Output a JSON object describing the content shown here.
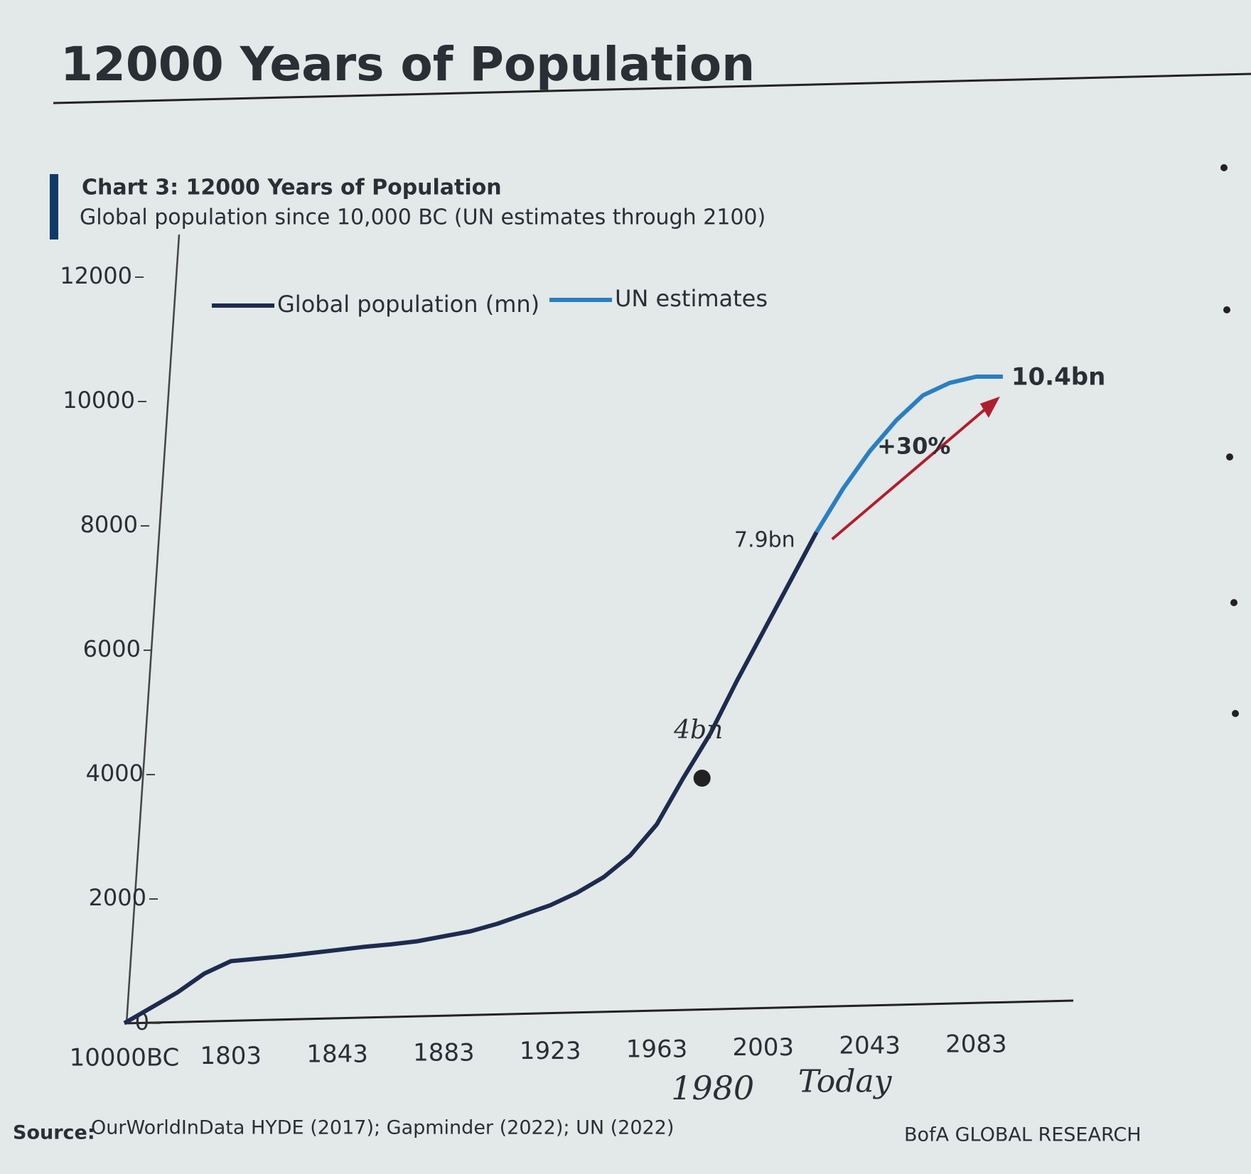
{
  "header": {
    "title": "12000 Years of Population"
  },
  "chart_data": {
    "type": "line",
    "title": "Chart 3: 12000 Years of Population",
    "subtitle": "Global population since 10,000 BC (UN estimates through 2100)",
    "categories": [
      "10000BC",
      null,
      null,
      null,
      "1803",
      null,
      null,
      null,
      "1843",
      null,
      null,
      null,
      "1883",
      null,
      null,
      null,
      "1923",
      null,
      null,
      null,
      "1963",
      null,
      null,
      null,
      "2003",
      null,
      null,
      null,
      "2043",
      null,
      null,
      null,
      "2083",
      null
    ],
    "series": [
      {
        "name": "Global population (mn)",
        "color": "#1c2b4f",
        "values": [
          4,
          250,
          500,
          800,
          1000,
          1040,
          1080,
          1130,
          1180,
          1230,
          1270,
          1320,
          1400,
          1480,
          1600,
          1750,
          1900,
          2100,
          2350,
          2700,
          3200,
          3950,
          4650,
          5500,
          6300,
          7100,
          7900,
          null,
          null,
          null,
          null,
          null,
          null,
          null
        ]
      },
      {
        "name": "UN estimates",
        "color": "#2a7fc0",
        "values": [
          null,
          null,
          null,
          null,
          null,
          null,
          null,
          null,
          null,
          null,
          null,
          null,
          null,
          null,
          null,
          null,
          null,
          null,
          null,
          null,
          null,
          null,
          null,
          null,
          null,
          null,
          7900,
          8600,
          9200,
          9700,
          10100,
          10300,
          10400,
          10400
        ]
      }
    ],
    "ylim": [
      0,
      12000
    ],
    "yticks": [
      0,
      2000,
      4000,
      6000,
      8000,
      10000,
      12000
    ],
    "grid": false,
    "legend": "top",
    "annotations": [
      "10.4bn",
      "7.9bn",
      "+30%",
      "4bn",
      "1980",
      "Today"
    ],
    "annotation_color": "#b01e2e"
  },
  "footer": {
    "source_label": "Source:",
    "source": "OurWorldInData HYDE (2017);  Gapminder (2022);  UN (2022)",
    "brand": "BofA GLOBAL RESEARCH"
  }
}
